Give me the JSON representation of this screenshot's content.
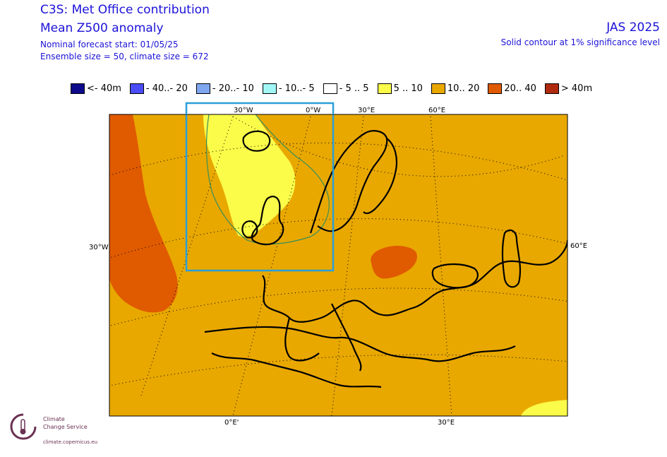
{
  "header": {
    "title": "C3S: Met Office contribution",
    "subtitle": "Mean Z500 anomaly",
    "forecast_start": "Nominal forecast start: 01/05/25",
    "ensemble": "Ensemble size = 50, climate size = 672",
    "season": "JAS 2025",
    "significance_note": "Solid contour at 1% significance level"
  },
  "legend": [
    {
      "label": "<- 40m",
      "color": "#0d0a8c"
    },
    {
      "label": "- 40..- 20",
      "color": "#4a4cf5"
    },
    {
      "label": "- 20..- 10",
      "color": "#7fa7ef"
    },
    {
      "label": "- 10..- 5",
      "color": "#a2f7f6"
    },
    {
      "label": "- 5 .. 5",
      "color": "#ffffff"
    },
    {
      "label": "5 .. 10",
      "color": "#fbfb4a"
    },
    {
      "label": "10.. 20",
      "color": "#e9a800"
    },
    {
      "label": "20.. 40",
      "color": "#e05a00"
    },
    {
      "label": "> 40m",
      "color": "#b02a10"
    }
  ],
  "map": {
    "grid_labels": {
      "top": [
        "30°W",
        "0°W",
        "30°E",
        "60°E"
      ],
      "left": "30°W",
      "right": "60°E",
      "bottom": [
        "0°E'",
        "30°E"
      ]
    },
    "colors": {
      "background": "#e9a800",
      "positive_high": "#e05a00",
      "positive_low": "#fbfb4a",
      "highlight_box": "#2a9fd8",
      "significance_contour": "#3a8f5a"
    }
  },
  "logo": {
    "line1": "Climate",
    "line2": "Change Service",
    "url": "climate.copernicus.eu"
  }
}
